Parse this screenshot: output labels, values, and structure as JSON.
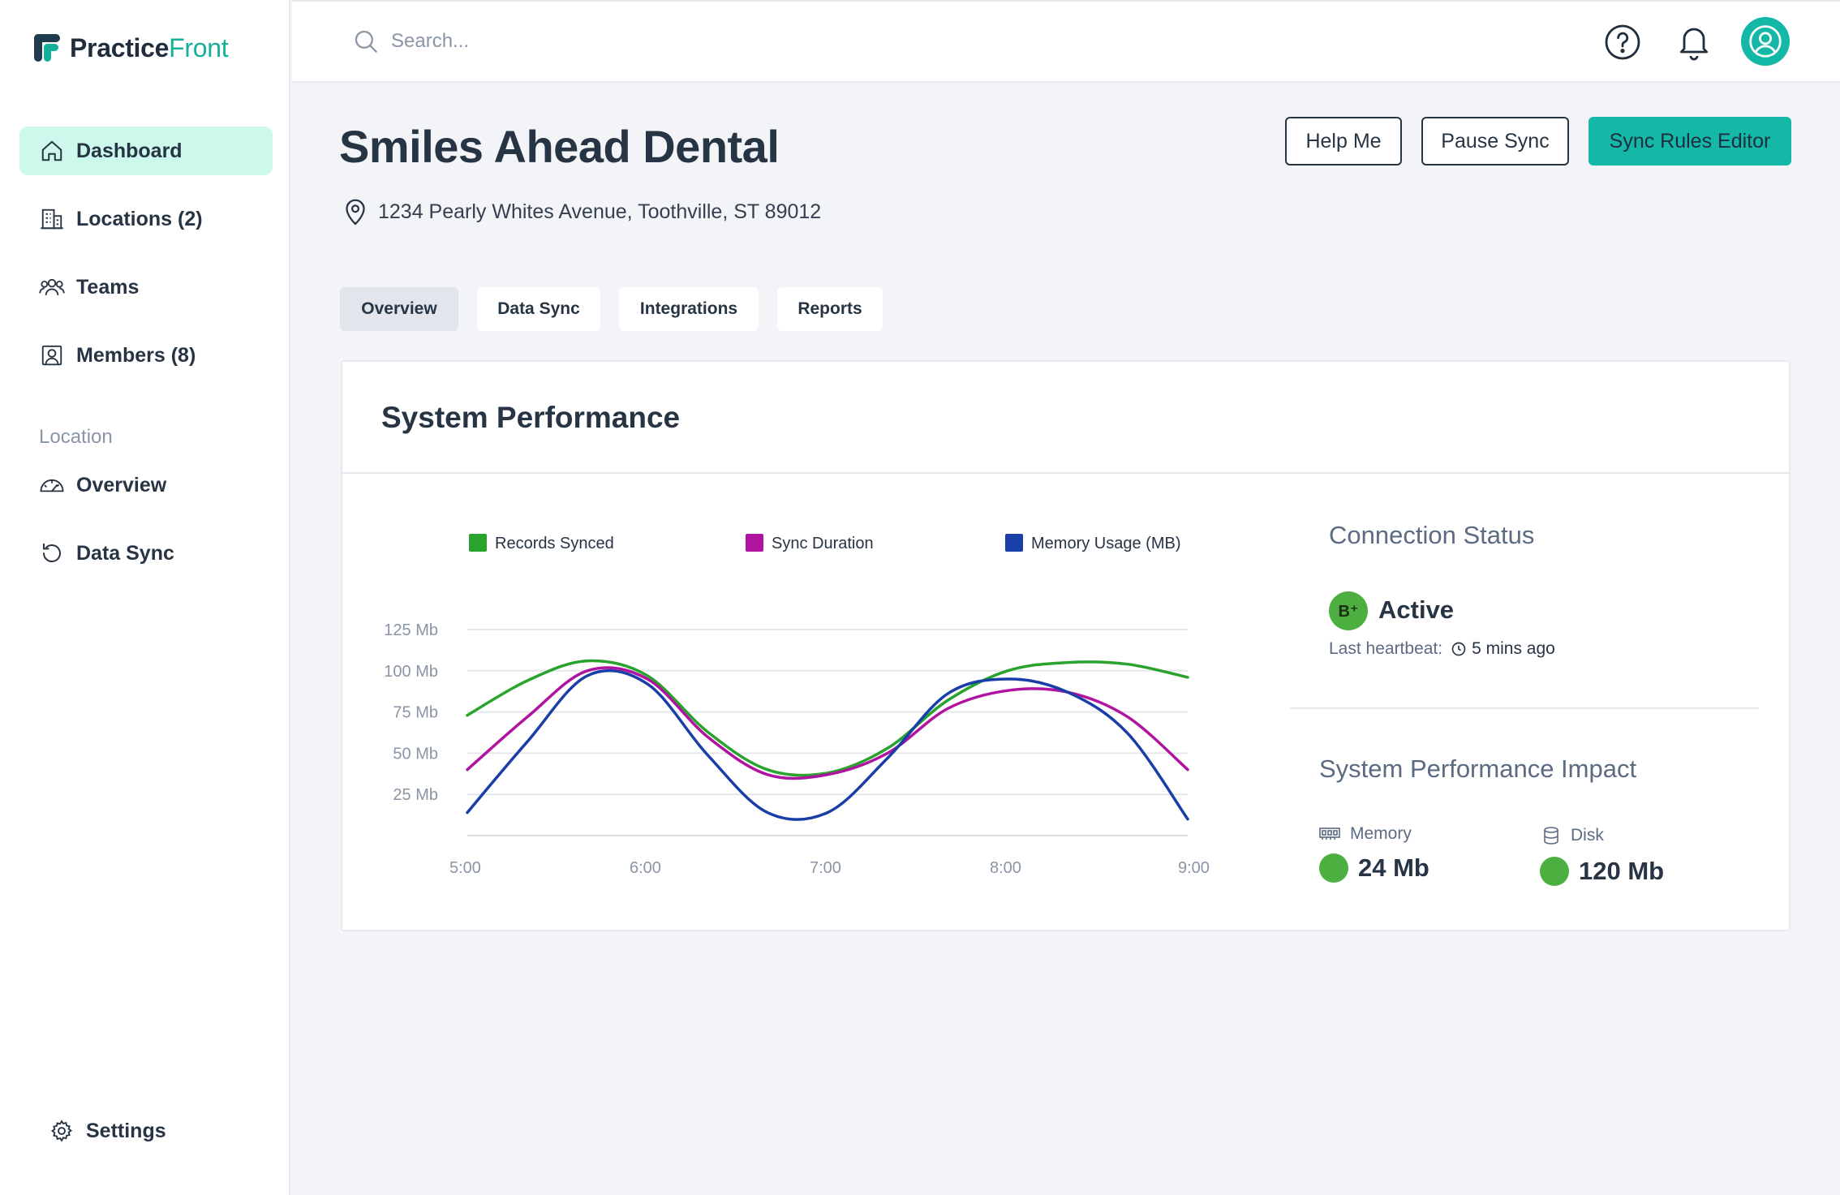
{
  "app": {
    "brand_primary": "Practice",
    "brand_accent": "Front",
    "accent_color": "#14b8a6"
  },
  "sidebar": {
    "items": [
      {
        "label": "Dashboard",
        "icon": "home-icon",
        "active": true
      },
      {
        "label": "Locations (2)",
        "icon": "building-icon"
      },
      {
        "label": "Teams",
        "icon": "users-icon"
      },
      {
        "label": "Members (8)",
        "icon": "member-icon"
      }
    ],
    "section_label": "Location",
    "location_items": [
      {
        "label": "Overview",
        "icon": "gauge-icon"
      },
      {
        "label": "Data Sync",
        "icon": "history-icon"
      }
    ],
    "settings_label": "Settings"
  },
  "topbar": {
    "search_placeholder": "Search..."
  },
  "header": {
    "title": "Smiles Ahead Dental",
    "address": "1234 Pearly Whites Avenue, Toothville, ST 89012",
    "buttons": {
      "help": "Help Me",
      "pause": "Pause Sync",
      "editor": "Sync Rules Editor"
    }
  },
  "tabs": [
    {
      "label": "Overview",
      "active": true
    },
    {
      "label": "Data Sync"
    },
    {
      "label": "Integrations"
    },
    {
      "label": "Reports"
    }
  ],
  "card": {
    "title": "System Performance"
  },
  "chart_data": {
    "type": "line",
    "x": [
      "5:00",
      "6:00",
      "7:00",
      "8:00",
      "9:00"
    ],
    "ytick_labels": [
      "125 Mb",
      "100 Mb",
      "75 Mb",
      "50 Mb",
      "25 Mb"
    ],
    "ylim": [
      0,
      125
    ],
    "grid": true,
    "legend_position": "top",
    "series": [
      {
        "name": "Records Synced",
        "color": "#29a32e",
        "points": [
          [
            0,
            73
          ],
          [
            0.25,
            94
          ],
          [
            0.5,
            106
          ],
          [
            0.75,
            97
          ],
          [
            1,
            63
          ],
          [
            1.25,
            40
          ],
          [
            1.5,
            38
          ],
          [
            1.75,
            53
          ],
          [
            2,
            82
          ],
          [
            2.25,
            100
          ],
          [
            2.5,
            105
          ],
          [
            2.75,
            104
          ],
          [
            3,
            96
          ]
        ]
      },
      {
        "name": "Sync Duration",
        "color": "#b0139f",
        "points": [
          [
            0,
            40
          ],
          [
            0.25,
            72
          ],
          [
            0.5,
            100
          ],
          [
            0.75,
            95
          ],
          [
            1,
            60
          ],
          [
            1.25,
            37
          ],
          [
            1.5,
            37
          ],
          [
            1.75,
            50
          ],
          [
            2,
            77
          ],
          [
            2.25,
            88
          ],
          [
            2.5,
            87
          ],
          [
            2.75,
            72
          ],
          [
            3,
            40
          ]
        ]
      },
      {
        "name": "Memory Usage (MB)",
        "color": "#1a3ea8",
        "points": [
          [
            0,
            14
          ],
          [
            0.25,
            57
          ],
          [
            0.5,
            97
          ],
          [
            0.75,
            92
          ],
          [
            1,
            49
          ],
          [
            1.25,
            14
          ],
          [
            1.5,
            14
          ],
          [
            1.75,
            47
          ],
          [
            2,
            86
          ],
          [
            2.25,
            95
          ],
          [
            2.5,
            87
          ],
          [
            2.75,
            62
          ],
          [
            3,
            10
          ]
        ]
      }
    ]
  },
  "status": {
    "title": "Connection Status",
    "badge": "B⁺",
    "value": "Active",
    "heartbeat_label": "Last heartbeat:",
    "heartbeat_value": "5 mins ago"
  },
  "impact": {
    "title": "System Performance Impact",
    "memory_label": "Memory",
    "memory_value": "24 Mb",
    "disk_label": "Disk",
    "disk_value": "120 Mb"
  }
}
